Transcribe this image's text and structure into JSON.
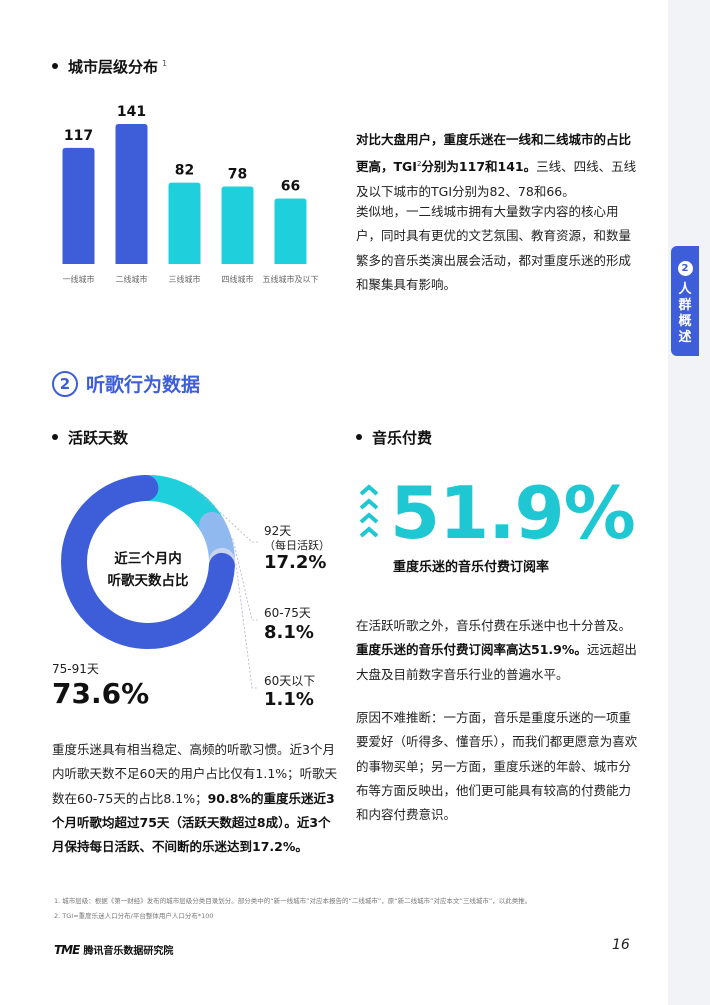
{
  "side_tab": {
    "number": "2",
    "label": "人群概述"
  },
  "city_tier": {
    "heading": "城市层级分布",
    "footnote_ref": "1",
    "chart_data": {
      "type": "bar",
      "categories": [
        "一线城市",
        "二线城市",
        "三线城市",
        "四线城市",
        "五线城市及以下"
      ],
      "values": [
        117,
        141,
        82,
        78,
        66
      ],
      "value_labels": [
        "117",
        "141",
        "82",
        "78",
        "66"
      ],
      "colors": [
        "#3d5ed8",
        "#3d5ed8",
        "#1fd0dc",
        "#1fd0dc",
        "#1fd0dc"
      ]
    },
    "para1_bold": "对比大盘用户，重度乐迷在一线和二线城市的占比更高，TGI",
    "para1_sup": "2",
    "para1_bold2": "分别为117和141。",
    "para1_rest": "三线、四线、五线及以下城市的TGI分别为82、78和66。",
    "para2": "类似地，一二线城市拥有大量数字内容的核心用户，同时具有更优的文艺氛围、教育资源，和数量繁多的音乐类演出展会活动，都对重度乐迷的形成和聚集具有影响。"
  },
  "section": {
    "number": "2",
    "title": "听歌行为数据"
  },
  "active_days": {
    "heading": "活跃天数",
    "chart_data": {
      "type": "pie",
      "title": "近三个月内听歌天数占比",
      "slices": [
        {
          "label": "75-91天",
          "value": 73.6,
          "value_label": "73.6%",
          "color": "#3d5ed8"
        },
        {
          "label": "92天",
          "sublabel": "（每日活跃）",
          "value": 17.2,
          "value_label": "17.2%",
          "color": "#1fd0dc"
        },
        {
          "label": "60-75天",
          "value": 8.1,
          "value_label": "8.1%",
          "color": "#8fb9ef"
        },
        {
          "label": "60天以下",
          "value": 1.1,
          "value_label": "1.1%",
          "color": "#c9d5ee"
        }
      ]
    },
    "center_line1": "近三个月内",
    "center_line2": "听歌天数占比",
    "para": "重度乐迷具有相当稳定、高频的听歌习惯。近3个月内听歌天数不足60天的用户占比仅有1.1%；听歌天数在60-75天的占比8.1%；",
    "para_bold": "90.8%的重度乐迷近3个月听歌均超过75天（活跃天数超过8成）。近3个月保持每日活跃、不间断的乐迷达到17.2%。"
  },
  "music_payment": {
    "heading": "音乐付费",
    "big_value": "51.9%",
    "caption": "重度乐迷的音乐付费订阅率",
    "para1_a": "在活跃听歌之外，音乐付费在乐迷中也十分普及。",
    "para1_bold": "重度乐迷的音乐付费订阅率高达51.9%。",
    "para1_b": "远远超出大盘及目前数字音乐行业的普遍水平。",
    "para2": "原因不难推断：一方面，音乐是重度乐迷的一项重要爱好（听得多、懂音乐），而我们都更愿意为喜欢的事物买单；另一方面，重度乐迷的年龄、城市分布等方面反映出，他们更可能具有较高的付费能力和内容付费意识。"
  },
  "footnotes": [
    "1. 城市层级：根据《第一财经》发布的城市层级分类目录划分。部分类中的“新一线城市”对应本报告的“二线城市”，原“新二线城市”对应本文“三线城市”，以此类推。",
    "2. TGI=重度乐迷人口分布/平台整体用户人口分布*100"
  ],
  "footer": {
    "logo_mark": "TME",
    "org_name": "腾讯音乐数据研究院",
    "page_number": "16"
  }
}
